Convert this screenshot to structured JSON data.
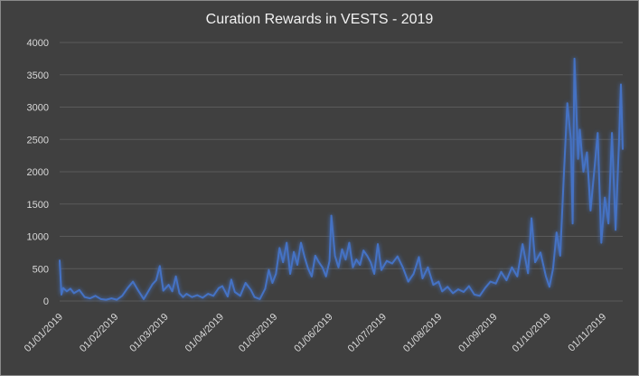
{
  "chart_data": {
    "type": "line",
    "title": "Curation Rewards in VESTS - 2019",
    "xlabel": "",
    "ylabel": "",
    "ylim": [
      0,
      4000
    ],
    "yticks": [
      "0",
      "500",
      "1000",
      "1500",
      "2000",
      "2500",
      "3000",
      "3500",
      "4000"
    ],
    "xticks": [
      "01/01/2019",
      "01/02/2019",
      "01/03/2019",
      "01/04/2019",
      "01/05/2019",
      "01/06/2019",
      "01/07/2019",
      "01/08/2019",
      "01/09/2019",
      "01/10/2019",
      "01/11/2019"
    ],
    "xlim": [
      "2019-01-01",
      "2019-11-12"
    ],
    "grid": true,
    "legend": "none",
    "series": [
      {
        "color": "#4472c4",
        "points": [
          [
            "2019-01-01",
            630
          ],
          [
            "2019-01-02",
            100
          ],
          [
            "2019-01-03",
            200
          ],
          [
            "2019-01-05",
            150
          ],
          [
            "2019-01-07",
            190
          ],
          [
            "2019-01-09",
            120
          ],
          [
            "2019-01-12",
            170
          ],
          [
            "2019-01-15",
            60
          ],
          [
            "2019-01-18",
            40
          ],
          [
            "2019-01-21",
            80
          ],
          [
            "2019-01-24",
            30
          ],
          [
            "2019-01-27",
            20
          ],
          [
            "2019-01-30",
            40
          ],
          [
            "2019-02-02",
            20
          ],
          [
            "2019-02-05",
            80
          ],
          [
            "2019-02-08",
            200
          ],
          [
            "2019-02-11",
            300
          ],
          [
            "2019-02-14",
            160
          ],
          [
            "2019-02-17",
            30
          ],
          [
            "2019-02-19",
            120
          ],
          [
            "2019-02-22",
            260
          ],
          [
            "2019-02-24",
            320
          ],
          [
            "2019-02-26",
            540
          ],
          [
            "2019-02-28",
            160
          ],
          [
            "2019-03-03",
            250
          ],
          [
            "2019-03-05",
            150
          ],
          [
            "2019-03-07",
            380
          ],
          [
            "2019-03-09",
            120
          ],
          [
            "2019-03-11",
            60
          ],
          [
            "2019-03-13",
            110
          ],
          [
            "2019-03-16",
            60
          ],
          [
            "2019-03-19",
            90
          ],
          [
            "2019-03-22",
            50
          ],
          [
            "2019-03-25",
            110
          ],
          [
            "2019-03-28",
            80
          ],
          [
            "2019-03-31",
            200
          ],
          [
            "2019-04-02",
            230
          ],
          [
            "2019-04-05",
            70
          ],
          [
            "2019-04-07",
            330
          ],
          [
            "2019-04-09",
            140
          ],
          [
            "2019-04-12",
            80
          ],
          [
            "2019-04-15",
            280
          ],
          [
            "2019-04-18",
            170
          ],
          [
            "2019-04-20",
            60
          ],
          [
            "2019-04-23",
            30
          ],
          [
            "2019-04-26",
            190
          ],
          [
            "2019-04-28",
            480
          ],
          [
            "2019-04-30",
            280
          ],
          [
            "2019-05-02",
            420
          ],
          [
            "2019-05-04",
            820
          ],
          [
            "2019-05-06",
            600
          ],
          [
            "2019-05-08",
            900
          ],
          [
            "2019-05-10",
            420
          ],
          [
            "2019-05-12",
            760
          ],
          [
            "2019-05-14",
            560
          ],
          [
            "2019-05-16",
            900
          ],
          [
            "2019-05-18",
            680
          ],
          [
            "2019-05-20",
            500
          ],
          [
            "2019-05-22",
            380
          ],
          [
            "2019-05-24",
            700
          ],
          [
            "2019-05-26",
            600
          ],
          [
            "2019-05-28",
            520
          ],
          [
            "2019-05-30",
            380
          ],
          [
            "2019-06-01",
            620
          ],
          [
            "2019-06-02",
            1320
          ],
          [
            "2019-06-04",
            700
          ],
          [
            "2019-06-06",
            520
          ],
          [
            "2019-06-08",
            800
          ],
          [
            "2019-06-10",
            640
          ],
          [
            "2019-06-12",
            900
          ],
          [
            "2019-06-14",
            520
          ],
          [
            "2019-06-16",
            640
          ],
          [
            "2019-06-18",
            560
          ],
          [
            "2019-06-20",
            780
          ],
          [
            "2019-06-22",
            700
          ],
          [
            "2019-06-24",
            600
          ],
          [
            "2019-06-26",
            420
          ],
          [
            "2019-06-28",
            880
          ],
          [
            "2019-06-30",
            480
          ],
          [
            "2019-07-03",
            620
          ],
          [
            "2019-07-06",
            580
          ],
          [
            "2019-07-09",
            690
          ],
          [
            "2019-07-12",
            520
          ],
          [
            "2019-07-15",
            300
          ],
          [
            "2019-07-18",
            420
          ],
          [
            "2019-07-21",
            680
          ],
          [
            "2019-07-23",
            350
          ],
          [
            "2019-07-26",
            520
          ],
          [
            "2019-07-29",
            250
          ],
          [
            "2019-08-01",
            300
          ],
          [
            "2019-08-03",
            150
          ],
          [
            "2019-08-06",
            220
          ],
          [
            "2019-08-09",
            120
          ],
          [
            "2019-08-12",
            180
          ],
          [
            "2019-08-15",
            140
          ],
          [
            "2019-08-18",
            230
          ],
          [
            "2019-08-21",
            100
          ],
          [
            "2019-08-24",
            80
          ],
          [
            "2019-08-27",
            200
          ],
          [
            "2019-08-30",
            300
          ],
          [
            "2019-09-02",
            270
          ],
          [
            "2019-09-05",
            450
          ],
          [
            "2019-09-08",
            320
          ],
          [
            "2019-09-11",
            520
          ],
          [
            "2019-09-14",
            380
          ],
          [
            "2019-09-17",
            880
          ],
          [
            "2019-09-20",
            430
          ],
          [
            "2019-09-22",
            1280
          ],
          [
            "2019-09-24",
            600
          ],
          [
            "2019-09-27",
            750
          ],
          [
            "2019-09-30",
            380
          ],
          [
            "2019-10-02",
            220
          ],
          [
            "2019-10-04",
            500
          ],
          [
            "2019-10-06",
            1060
          ],
          [
            "2019-10-08",
            700
          ],
          [
            "2019-10-10",
            1900
          ],
          [
            "2019-10-12",
            3060
          ],
          [
            "2019-10-14",
            2500
          ],
          [
            "2019-10-15",
            1200
          ],
          [
            "2019-10-16",
            3750
          ],
          [
            "2019-10-18",
            2200
          ],
          [
            "2019-10-19",
            2650
          ],
          [
            "2019-10-21",
            2000
          ],
          [
            "2019-10-23",
            2300
          ],
          [
            "2019-10-25",
            1400
          ],
          [
            "2019-10-27",
            2000
          ],
          [
            "2019-10-29",
            2600
          ],
          [
            "2019-10-31",
            900
          ],
          [
            "2019-11-02",
            1600
          ],
          [
            "2019-11-04",
            1200
          ],
          [
            "2019-11-06",
            2600
          ],
          [
            "2019-11-08",
            1100
          ],
          [
            "2019-11-10",
            2500
          ],
          [
            "2019-11-11",
            3350
          ],
          [
            "2019-11-12",
            2350
          ]
        ]
      }
    ]
  }
}
